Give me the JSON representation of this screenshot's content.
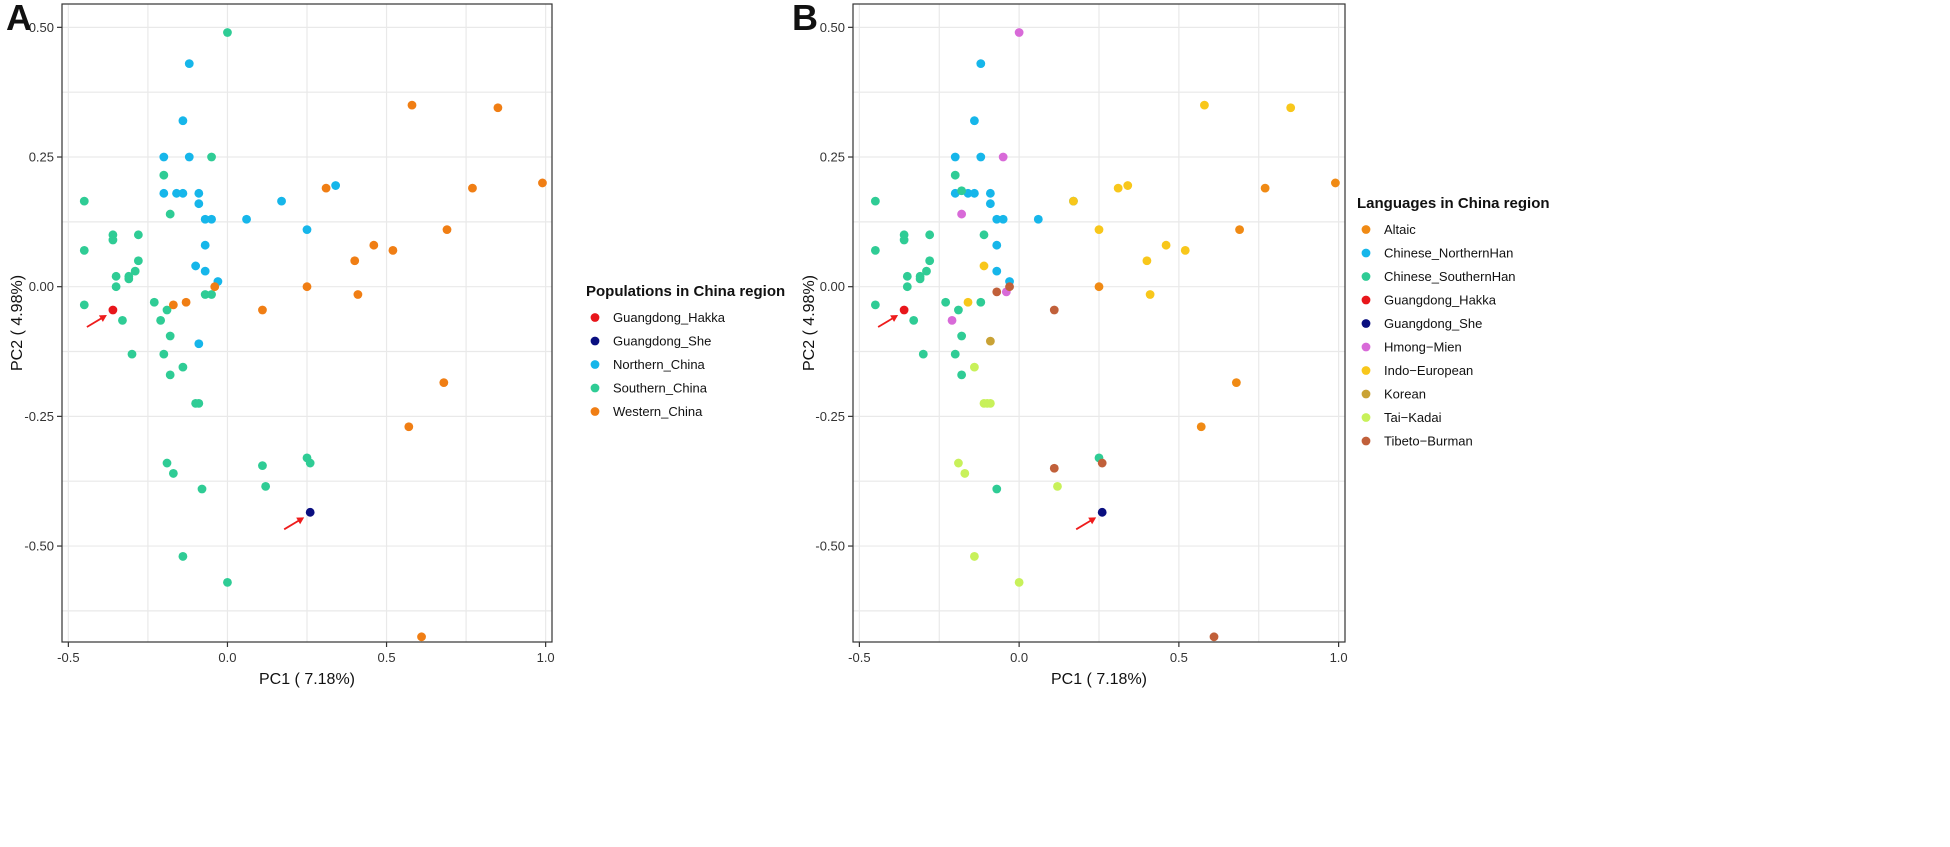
{
  "colors": {
    "red": "#e8161b",
    "navy": "#0a0f80",
    "cyan": "#16b6ea",
    "teal": "#2fcc95",
    "orange": "#f07e14",
    "altaic": "#f08a14",
    "magenta": "#d86ad8",
    "yellow": "#f8c71b",
    "korean": "#c9a235",
    "lime": "#c8f15a",
    "brown": "#c1603a",
    "arrow": "#ee1c1c",
    "grid": "#e9e9e9",
    "frame": "#333333"
  },
  "chart_data": [
    {
      "type": "scatter",
      "panel_label": "A",
      "xlabel": "PC1 ( 7.18%)",
      "ylabel": "PC2 ( 4.98%)",
      "xlim": [
        -0.52,
        1.02
      ],
      "ylim": [
        -0.685,
        0.545
      ],
      "xticks": [
        -0.5,
        0.0,
        0.5,
        1.0
      ],
      "xtick_labels": [
        "-0.5",
        "0.0",
        "0.5",
        "1.0"
      ],
      "yticks": [
        0.5,
        0.25,
        0.0,
        -0.25,
        -0.5
      ],
      "ytick_labels": [
        "0.50",
        "0.25",
        "0.00",
        "-0.25",
        "-0.50"
      ],
      "grid": true,
      "legend_title": "Populations in China region",
      "legend": [
        {
          "label": "Guangdong_Hakka",
          "color": "#e8161b"
        },
        {
          "label": "Guangdong_She",
          "color": "#0a0f80"
        },
        {
          "label": "Northern_China",
          "color": "#16b6ea"
        },
        {
          "label": "Southern_China",
          "color": "#2fcc95"
        },
        {
          "label": "Western_China",
          "color": "#f07e14"
        }
      ],
      "annotations": [
        {
          "type": "arrow",
          "x": -0.36,
          "y": -0.045,
          "label": "Guangdong_Hakka"
        },
        {
          "type": "arrow",
          "x": 0.26,
          "y": -0.435,
          "label": "Guangdong_She"
        }
      ],
      "series": [
        {
          "name": "Guangdong_Hakka",
          "color": "#e8161b",
          "points": [
            [
              -0.36,
              -0.045
            ]
          ]
        },
        {
          "name": "Guangdong_She",
          "color": "#0a0f80",
          "points": [
            [
              0.26,
              -0.435
            ]
          ]
        },
        {
          "name": "Northern_China",
          "color": "#16b6ea",
          "points": [
            [
              -0.12,
              0.43
            ],
            [
              -0.14,
              0.32
            ],
            [
              -0.2,
              0.25
            ],
            [
              -0.12,
              0.25
            ],
            [
              -0.2,
              0.18
            ],
            [
              -0.16,
              0.18
            ],
            [
              -0.14,
              0.18
            ],
            [
              -0.09,
              0.18
            ],
            [
              -0.09,
              0.16
            ],
            [
              -0.07,
              0.13
            ],
            [
              -0.05,
              0.13
            ],
            [
              -0.1,
              0.04
            ],
            [
              -0.07,
              0.03
            ],
            [
              -0.03,
              0.01
            ],
            [
              -0.09,
              -0.11
            ],
            [
              0.06,
              0.13
            ],
            [
              0.17,
              0.165
            ],
            [
              0.25,
              0.11
            ],
            [
              0.34,
              0.195
            ],
            [
              -0.07,
              0.08
            ]
          ]
        },
        {
          "name": "Southern_China",
          "color": "#2fcc95",
          "points": [
            [
              0.0,
              0.49
            ],
            [
              -0.45,
              0.165
            ],
            [
              -0.45,
              0.07
            ],
            [
              -0.36,
              0.1
            ],
            [
              -0.36,
              0.09
            ],
            [
              -0.35,
              0.02
            ],
            [
              -0.35,
              0.0
            ],
            [
              -0.31,
              0.015
            ],
            [
              -0.31,
              0.02
            ],
            [
              -0.29,
              0.03
            ],
            [
              -0.28,
              0.05
            ],
            [
              -0.28,
              0.1
            ],
            [
              -0.2,
              0.215
            ],
            [
              -0.18,
              0.14
            ],
            [
              -0.05,
              0.25
            ],
            [
              -0.45,
              -0.035
            ],
            [
              -0.33,
              -0.065
            ],
            [
              -0.3,
              -0.13
            ],
            [
              -0.23,
              -0.03
            ],
            [
              -0.21,
              -0.065
            ],
            [
              -0.19,
              -0.045
            ],
            [
              -0.2,
              -0.13
            ],
            [
              -0.18,
              -0.095
            ],
            [
              -0.18,
              -0.17
            ],
            [
              -0.14,
              -0.155
            ],
            [
              -0.1,
              -0.225
            ],
            [
              -0.09,
              -0.225
            ],
            [
              -0.19,
              -0.34
            ],
            [
              -0.17,
              -0.36
            ],
            [
              -0.08,
              -0.39
            ],
            [
              -0.14,
              -0.52
            ],
            [
              0.0,
              -0.57
            ],
            [
              -0.07,
              -0.015
            ],
            [
              -0.05,
              -0.015
            ],
            [
              0.11,
              -0.345
            ],
            [
              0.12,
              -0.385
            ],
            [
              0.25,
              -0.33
            ],
            [
              0.26,
              -0.34
            ]
          ]
        },
        {
          "name": "Western_China",
          "color": "#f07e14",
          "points": [
            [
              0.58,
              0.35
            ],
            [
              0.85,
              0.345
            ],
            [
              0.99,
              0.2
            ],
            [
              0.77,
              0.19
            ],
            [
              0.31,
              0.19
            ],
            [
              0.69,
              0.11
            ],
            [
              0.46,
              0.08
            ],
            [
              0.52,
              0.07
            ],
            [
              0.4,
              0.05
            ],
            [
              0.25,
              0.0
            ],
            [
              0.41,
              -0.015
            ],
            [
              0.11,
              -0.045
            ],
            [
              -0.04,
              0.0
            ],
            [
              -0.13,
              -0.03
            ],
            [
              -0.17,
              -0.035
            ],
            [
              0.68,
              -0.185
            ],
            [
              0.57,
              -0.27
            ],
            [
              0.61,
              -0.675
            ]
          ]
        }
      ]
    },
    {
      "type": "scatter",
      "panel_label": "B",
      "xlabel": "PC1 ( 7.18%)",
      "ylabel": "PC2 ( 4.98%)",
      "xlim": [
        -0.52,
        1.02
      ],
      "ylim": [
        -0.685,
        0.545
      ],
      "xticks": [
        -0.5,
        0.0,
        0.5,
        1.0
      ],
      "xtick_labels": [
        "-0.5",
        "0.0",
        "0.5",
        "1.0"
      ],
      "yticks": [
        0.5,
        0.25,
        0.0,
        -0.25,
        -0.5
      ],
      "ytick_labels": [
        "0.50",
        "0.25",
        "0.00",
        "-0.25",
        "-0.50"
      ],
      "grid": true,
      "legend_title": "Languages in China region",
      "legend": [
        {
          "label": "Altaic",
          "color": "#f08a14"
        },
        {
          "label": "Chinese_NorthernHan",
          "color": "#16b6ea"
        },
        {
          "label": "Chinese_SouthernHan",
          "color": "#2fcc95"
        },
        {
          "label": "Guangdong_Hakka",
          "color": "#e8161b"
        },
        {
          "label": "Guangdong_She",
          "color": "#0a0f80"
        },
        {
          "label": "Hmong−Mien",
          "color": "#d86ad8"
        },
        {
          "label": "Indo−European",
          "color": "#f8c71b"
        },
        {
          "label": "Korean",
          "color": "#c9a235"
        },
        {
          "label": "Tai−Kadai",
          "color": "#c8f15a"
        },
        {
          "label": "Tibeto−Burman",
          "color": "#c1603a"
        }
      ],
      "annotations": [
        {
          "type": "arrow",
          "x": -0.36,
          "y": -0.045,
          "label": "Guangdong_Hakka"
        },
        {
          "type": "arrow",
          "x": 0.26,
          "y": -0.435,
          "label": "Guangdong_She"
        }
      ],
      "series": [
        {
          "name": "Altaic",
          "color": "#f08a14",
          "points": [
            [
              0.99,
              0.2
            ],
            [
              0.77,
              0.19
            ],
            [
              0.69,
              0.11
            ],
            [
              0.25,
              0.0
            ],
            [
              0.68,
              -0.185
            ],
            [
              0.57,
              -0.27
            ]
          ]
        },
        {
          "name": "Chinese_NorthernHan",
          "color": "#16b6ea",
          "points": [
            [
              -0.12,
              0.43
            ],
            [
              -0.14,
              0.32
            ],
            [
              -0.2,
              0.25
            ],
            [
              -0.12,
              0.25
            ],
            [
              -0.2,
              0.18
            ],
            [
              -0.16,
              0.18
            ],
            [
              -0.14,
              0.18
            ],
            [
              -0.09,
              0.18
            ],
            [
              -0.09,
              0.16
            ],
            [
              -0.07,
              0.13
            ],
            [
              -0.05,
              0.13
            ],
            [
              -0.07,
              0.03
            ],
            [
              -0.03,
              0.01
            ],
            [
              0.06,
              0.13
            ],
            [
              0.17,
              0.165
            ],
            [
              -0.07,
              0.08
            ]
          ]
        },
        {
          "name": "Chinese_SouthernHan",
          "color": "#2fcc95",
          "points": [
            [
              -0.45,
              0.165
            ],
            [
              -0.45,
              0.07
            ],
            [
              -0.36,
              0.1
            ],
            [
              -0.36,
              0.09
            ],
            [
              -0.35,
              0.02
            ],
            [
              -0.35,
              0.0
            ],
            [
              -0.31,
              0.015
            ],
            [
              -0.31,
              0.02
            ],
            [
              -0.29,
              0.03
            ],
            [
              -0.28,
              0.05
            ],
            [
              -0.28,
              0.1
            ],
            [
              -0.2,
              0.215
            ],
            [
              -0.18,
              0.185
            ],
            [
              -0.45,
              -0.035
            ],
            [
              -0.33,
              -0.065
            ],
            [
              -0.3,
              -0.13
            ],
            [
              -0.23,
              -0.03
            ],
            [
              -0.19,
              -0.045
            ],
            [
              -0.2,
              -0.13
            ],
            [
              -0.18,
              -0.095
            ],
            [
              -0.18,
              -0.17
            ],
            [
              -0.11,
              0.1
            ],
            [
              -0.12,
              -0.03
            ],
            [
              -0.07,
              -0.39
            ],
            [
              0.25,
              -0.33
            ]
          ]
        },
        {
          "name": "Guangdong_Hakka",
          "color": "#e8161b",
          "points": [
            [
              -0.36,
              -0.045
            ]
          ]
        },
        {
          "name": "Guangdong_She",
          "color": "#0a0f80",
          "points": [
            [
              0.26,
              -0.435
            ]
          ]
        },
        {
          "name": "Hmong−Mien",
          "color": "#d86ad8",
          "points": [
            [
              0.0,
              0.49
            ],
            [
              -0.05,
              0.25
            ],
            [
              -0.18,
              0.14
            ],
            [
              -0.21,
              -0.065
            ],
            [
              -0.04,
              -0.01
            ]
          ]
        },
        {
          "name": "Indo−European",
          "color": "#f8c71b",
          "points": [
            [
              0.58,
              0.35
            ],
            [
              0.85,
              0.345
            ],
            [
              0.31,
              0.19
            ],
            [
              0.34,
              0.195
            ],
            [
              0.17,
              0.165
            ],
            [
              0.25,
              0.11
            ],
            [
              0.46,
              0.08
            ],
            [
              0.52,
              0.07
            ],
            [
              0.4,
              0.05
            ],
            [
              0.41,
              -0.015
            ],
            [
              -0.11,
              0.04
            ],
            [
              -0.16,
              -0.03
            ]
          ]
        },
        {
          "name": "Korean",
          "color": "#c9a235",
          "points": [
            [
              -0.09,
              -0.105
            ]
          ]
        },
        {
          "name": "Tai−Kadai",
          "color": "#c8f15a",
          "points": [
            [
              -0.14,
              -0.155
            ],
            [
              -0.11,
              -0.225
            ],
            [
              -0.1,
              -0.225
            ],
            [
              -0.09,
              -0.225
            ],
            [
              -0.19,
              -0.34
            ],
            [
              -0.17,
              -0.36
            ],
            [
              -0.14,
              -0.52
            ],
            [
              0.0,
              -0.57
            ],
            [
              0.12,
              -0.385
            ]
          ]
        },
        {
          "name": "Tibeto−Burman",
          "color": "#c1603a",
          "points": [
            [
              0.11,
              -0.045
            ],
            [
              -0.07,
              -0.01
            ],
            [
              -0.03,
              0.0
            ],
            [
              0.11,
              -0.35
            ],
            [
              0.26,
              -0.34
            ],
            [
              0.61,
              -0.675
            ]
          ]
        }
      ]
    }
  ]
}
